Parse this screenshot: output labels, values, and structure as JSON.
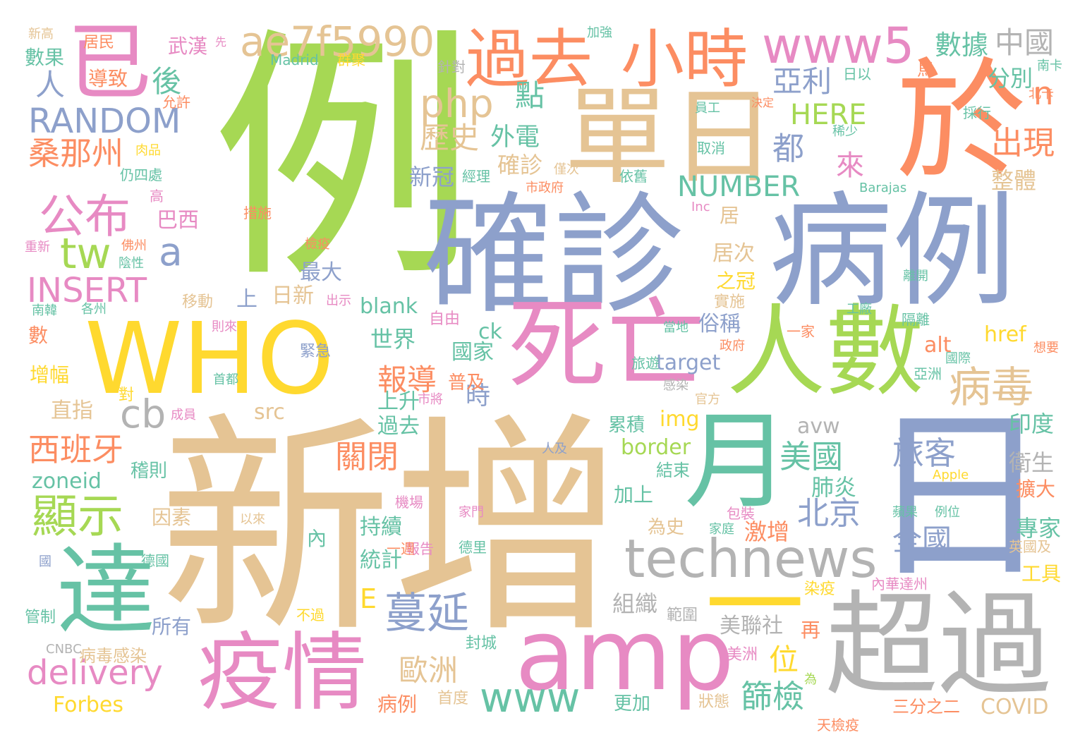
{
  "palette": {
    "green": "#a6d854",
    "tan": "#e5c494",
    "blue": "#8da0cb",
    "orange": "#fc8d62",
    "pink": "#e78ac3",
    "yellow": "#ffd92f",
    "teal": "#66c2a5",
    "gray": "#b3b3b3"
  },
  "words": [
    {
      "text": "例",
      "color": "green"
    },
    {
      "text": "新增",
      "color": "tan"
    },
    {
      "text": "確診",
      "color": "blue"
    },
    {
      "text": "病例",
      "color": "blue"
    },
    {
      "text": "日",
      "color": "blue"
    },
    {
      "text": "於",
      "color": "orange"
    },
    {
      "text": "單日",
      "color": "tan"
    },
    {
      "text": "WHO",
      "color": "yellow"
    },
    {
      "text": "已",
      "color": "pink"
    },
    {
      "text": "人數",
      "color": "green"
    },
    {
      "text": "死亡",
      "color": "pink"
    },
    {
      "text": "超過",
      "color": "gray"
    },
    {
      "text": "月",
      "color": "teal"
    },
    {
      "text": "amp",
      "color": "pink"
    },
    {
      "text": "達",
      "color": "teal"
    },
    {
      "text": "疫情",
      "color": "pink"
    },
    {
      "text": "過去",
      "color": "orange"
    },
    {
      "text": "小時",
      "color": "orange"
    },
    {
      "text": "technews",
      "color": "gray"
    },
    {
      "text": "www5",
      "color": "pink"
    },
    {
      "text": "ae7f5990",
      "color": "tan"
    },
    {
      "text": "一",
      "color": "yellow"
    },
    {
      "text": "病毒",
      "color": "tan"
    },
    {
      "text": "公布",
      "color": "pink"
    },
    {
      "text": "顯示",
      "color": "green"
    },
    {
      "text": "蔓延",
      "color": "blue"
    },
    {
      "text": "www",
      "color": "teal"
    },
    {
      "text": "RANDOM",
      "color": "blue"
    },
    {
      "text": "INSERT",
      "color": "pink"
    },
    {
      "text": "delivery",
      "color": "pink"
    },
    {
      "text": "php",
      "color": "tan"
    },
    {
      "text": "tw",
      "color": "green"
    },
    {
      "text": "a",
      "color": "blue"
    },
    {
      "text": "cb",
      "color": "gray"
    },
    {
      "text": "旅客",
      "color": "blue"
    },
    {
      "text": "全國",
      "color": "blue"
    },
    {
      "text": "NUMBER",
      "color": "teal"
    },
    {
      "text": "HERE",
      "color": "green"
    },
    {
      "text": "亞利",
      "color": "blue"
    },
    {
      "text": "中國",
      "color": "gray"
    },
    {
      "text": "數據",
      "color": "teal"
    },
    {
      "text": "n",
      "color": "orange"
    },
    {
      "text": "出現",
      "color": "orange"
    },
    {
      "text": "桑那州",
      "color": "orange"
    },
    {
      "text": "西班牙",
      "color": "orange"
    },
    {
      "text": "美國",
      "color": "teal"
    },
    {
      "text": "北京",
      "color": "blue"
    },
    {
      "text": "關閉",
      "color": "orange"
    },
    {
      "text": "篩檢",
      "color": "teal"
    },
    {
      "text": "歷史",
      "color": "tan"
    },
    {
      "text": "點",
      "color": "teal"
    },
    {
      "text": "後",
      "color": "teal"
    },
    {
      "text": "人",
      "color": "blue"
    },
    {
      "text": "都",
      "color": "blue"
    },
    {
      "text": "來",
      "color": "pink"
    },
    {
      "text": "報導",
      "color": "orange"
    },
    {
      "text": "位",
      "color": "yellow"
    },
    {
      "text": "歐洲",
      "color": "tan"
    },
    {
      "text": "外電",
      "color": "teal"
    },
    {
      "text": "確診",
      "color": "tan"
    },
    {
      "text": "新冠",
      "color": "blue"
    },
    {
      "text": "分別",
      "color": "teal"
    },
    {
      "text": "整體",
      "color": "tan"
    },
    {
      "text": "肺炎",
      "color": "teal"
    },
    {
      "text": "激增",
      "color": "orange"
    },
    {
      "text": "衛生",
      "color": "gray"
    },
    {
      "text": "印度",
      "color": "teal"
    },
    {
      "text": "專家",
      "color": "teal"
    },
    {
      "text": "擴大",
      "color": "orange"
    },
    {
      "text": "工具",
      "color": "yellow"
    },
    {
      "text": "持續",
      "color": "teal"
    },
    {
      "text": "統計",
      "color": "teal"
    },
    {
      "text": "組織",
      "color": "gray"
    },
    {
      "text": "美聯社",
      "color": "gray"
    },
    {
      "text": "居次",
      "color": "tan"
    },
    {
      "text": "之冠",
      "color": "yellow"
    },
    {
      "text": "居",
      "color": "tan"
    },
    {
      "text": "最大",
      "color": "blue"
    },
    {
      "text": "日新",
      "color": "tan"
    },
    {
      "text": "巴西",
      "color": "pink"
    },
    {
      "text": "武漢",
      "color": "pink"
    },
    {
      "text": "導致",
      "color": "orange"
    },
    {
      "text": "數果",
      "color": "teal"
    },
    {
      "text": "居民",
      "color": "orange"
    },
    {
      "text": "俗稱",
      "color": "blue"
    },
    {
      "text": "世界",
      "color": "teal"
    },
    {
      "text": "國家",
      "color": "teal"
    },
    {
      "text": "時",
      "color": "blue"
    },
    {
      "text": "上升",
      "color": "teal"
    },
    {
      "text": "過去",
      "color": "teal"
    },
    {
      "text": "直指",
      "color": "tan"
    },
    {
      "text": "增幅",
      "color": "yellow"
    },
    {
      "text": "數",
      "color": "orange"
    },
    {
      "text": "zoneid",
      "color": "teal"
    },
    {
      "text": "border",
      "color": "green"
    },
    {
      "text": "img",
      "color": "yellow"
    },
    {
      "text": "target",
      "color": "blue"
    },
    {
      "text": "blank",
      "color": "teal"
    },
    {
      "text": "href",
      "color": "yellow"
    },
    {
      "text": "alt",
      "color": "orange"
    },
    {
      "text": "ck",
      "color": "teal"
    },
    {
      "text": "src",
      "color": "tan"
    },
    {
      "text": "avw",
      "color": "gray"
    },
    {
      "text": "E",
      "color": "yellow"
    },
    {
      "text": "上",
      "color": "blue"
    },
    {
      "text": "Forbes",
      "color": "yellow"
    },
    {
      "text": "COVID",
      "color": "tan"
    },
    {
      "text": "病例",
      "color": "orange"
    },
    {
      "text": "更加",
      "color": "teal"
    },
    {
      "text": "狀態",
      "color": "tan"
    },
    {
      "text": "再",
      "color": "orange"
    },
    {
      "text": "所有",
      "color": "blue"
    },
    {
      "text": "病毒感染",
      "color": "tan"
    },
    {
      "text": "管制",
      "color": "teal"
    },
    {
      "text": "加上",
      "color": "teal"
    },
    {
      "text": "為史",
      "color": "tan"
    },
    {
      "text": "內",
      "color": "teal"
    },
    {
      "text": "累積",
      "color": "teal"
    },
    {
      "text": "結束",
      "color": "teal"
    },
    {
      "text": "普及",
      "color": "orange"
    },
    {
      "text": "因素",
      "color": "tan"
    },
    {
      "text": "稽則",
      "color": "teal"
    },
    {
      "text": "移動",
      "color": "tan"
    },
    {
      "text": "緊急",
      "color": "blue"
    },
    {
      "text": "自由",
      "color": "pink"
    },
    {
      "text": "實施",
      "color": "tan"
    },
    {
      "text": "隔離",
      "color": "teal"
    },
    {
      "text": "亞洲",
      "color": "teal"
    },
    {
      "text": "國際",
      "color": "teal"
    },
    {
      "text": "想要",
      "color": "orange"
    },
    {
      "text": "三分之二",
      "color": "orange"
    },
    {
      "text": "染疫",
      "color": "yellow"
    },
    {
      "text": "美洲",
      "color": "pink"
    },
    {
      "text": "封城",
      "color": "teal"
    },
    {
      "text": "首度",
      "color": "tan"
    },
    {
      "text": "天檢疫",
      "color": "orange"
    },
    {
      "text": "範圍",
      "color": "gray"
    },
    {
      "text": "內華達州",
      "color": "pink"
    },
    {
      "text": "英國及",
      "color": "tan"
    },
    {
      "text": "德里",
      "color": "teal"
    },
    {
      "text": "報告",
      "color": "pink"
    },
    {
      "text": "一週",
      "color": "orange"
    },
    {
      "text": "德國",
      "color": "teal"
    },
    {
      "text": "國",
      "color": "blue"
    },
    {
      "text": "不過",
      "color": "yellow"
    },
    {
      "text": "CNBC",
      "color": "gray"
    },
    {
      "text": "機場",
      "color": "pink"
    },
    {
      "text": "家門",
      "color": "pink"
    },
    {
      "text": "以來",
      "color": "tan"
    },
    {
      "text": "人及",
      "color": "blue"
    },
    {
      "text": "包裝",
      "color": "pink"
    },
    {
      "text": "Apple",
      "color": "yellow"
    },
    {
      "text": "蘋果",
      "color": "teal"
    },
    {
      "text": "例位",
      "color": "teal"
    },
    {
      "text": "家庭",
      "color": "teal"
    },
    {
      "text": "感染",
      "color": "gray"
    },
    {
      "text": "官方",
      "color": "tan"
    },
    {
      "text": "市將",
      "color": "pink"
    },
    {
      "text": "成員",
      "color": "pink"
    },
    {
      "text": "對",
      "color": "yellow"
    },
    {
      "text": "首都",
      "color": "teal"
    },
    {
      "text": "旅遊",
      "color": "teal"
    },
    {
      "text": "政府",
      "color": "orange"
    },
    {
      "text": "當地",
      "color": "teal"
    },
    {
      "text": "一家",
      "color": "orange"
    },
    {
      "text": "工廠",
      "color": "teal"
    },
    {
      "text": "離開",
      "color": "teal"
    },
    {
      "text": "為",
      "color": "green"
    },
    {
      "text": "則來",
      "color": "pink"
    },
    {
      "text": "出示",
      "color": "pink"
    },
    {
      "text": "南韓",
      "color": "teal"
    },
    {
      "text": "各州",
      "color": "teal"
    },
    {
      "text": "陰性",
      "color": "teal"
    },
    {
      "text": "重新",
      "color": "pink"
    },
    {
      "text": "佛州",
      "color": "orange"
    },
    {
      "text": "檢疫",
      "color": "orange"
    },
    {
      "text": "措施",
      "color": "orange"
    },
    {
      "text": "Inc",
      "color": "pink"
    },
    {
      "text": "Barajas",
      "color": "teal"
    },
    {
      "text": "市政府",
      "color": "orange"
    },
    {
      "text": "依舊",
      "color": "teal"
    },
    {
      "text": "僅次",
      "color": "tan"
    },
    {
      "text": "經理",
      "color": "teal"
    },
    {
      "text": "高",
      "color": "pink"
    },
    {
      "text": "仍四處",
      "color": "teal"
    },
    {
      "text": "肉品",
      "color": "yellow"
    },
    {
      "text": "允許",
      "color": "orange"
    },
    {
      "text": "針對",
      "color": "gray"
    },
    {
      "text": "群聚",
      "color": "yellow"
    },
    {
      "text": "Madrid",
      "color": "teal"
    },
    {
      "text": "先",
      "color": "pink"
    },
    {
      "text": "加強",
      "color": "teal"
    },
    {
      "text": "新高",
      "color": "tan"
    },
    {
      "text": "員工",
      "color": "teal"
    },
    {
      "text": "決定",
      "color": "orange"
    },
    {
      "text": "取消",
      "color": "teal"
    },
    {
      "text": "稀少",
      "color": "teal"
    },
    {
      "text": "採行",
      "color": "teal"
    },
    {
      "text": "日以",
      "color": "teal"
    },
    {
      "text": "馬",
      "color": "orange"
    },
    {
      "text": "南卡",
      "color": "teal"
    },
    {
      "text": "北卡",
      "color": "orange"
    }
  ]
}
